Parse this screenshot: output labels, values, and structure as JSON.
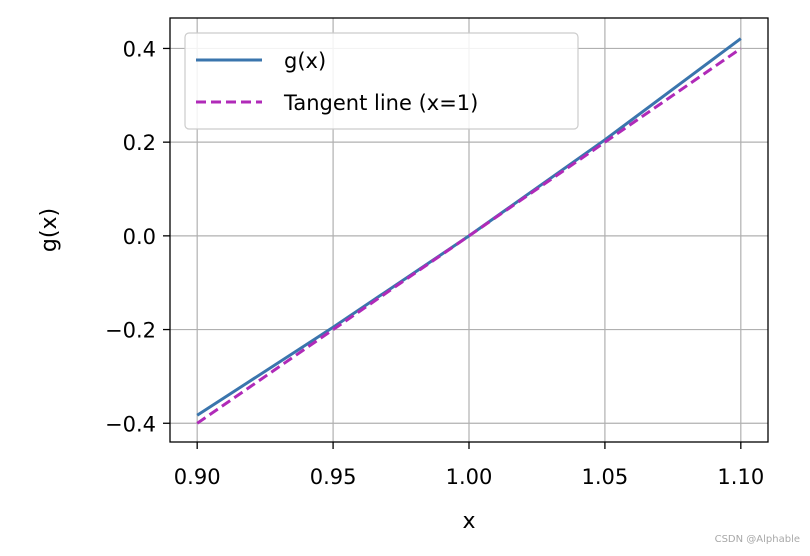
{
  "chart_data": {
    "type": "line",
    "title": "",
    "xlabel": "x",
    "ylabel": "g(x)",
    "xlim": [
      0.89,
      1.11
    ],
    "ylim": [
      -0.44,
      0.465
    ],
    "xticks": [
      0.9,
      0.95,
      1.0,
      1.05,
      1.1
    ],
    "xtick_labels": [
      "0.90",
      "0.95",
      "1.00",
      "1.05",
      "1.10"
    ],
    "yticks": [
      -0.4,
      -0.2,
      0.0,
      0.2,
      0.4
    ],
    "ytick_labels": [
      "−0.4",
      "−0.2",
      "0.0",
      "0.2",
      "0.4"
    ],
    "grid": true,
    "legend_position": "top-left",
    "series": [
      {
        "name": "g(x)",
        "color": "#3a75ad",
        "style": "solid",
        "x": [
          0.9,
          0.95,
          1.0,
          1.05,
          1.1
        ],
        "values": [
          -0.383,
          -0.195,
          0.0,
          0.205,
          0.421
        ]
      },
      {
        "name": "Tangent line (x=1)",
        "color": "#b02ab8",
        "style": "dashed",
        "x": [
          0.9,
          1.0,
          1.1
        ],
        "values": [
          -0.4,
          0.0,
          0.4
        ]
      }
    ]
  },
  "watermark": "CSDN @Alphable"
}
